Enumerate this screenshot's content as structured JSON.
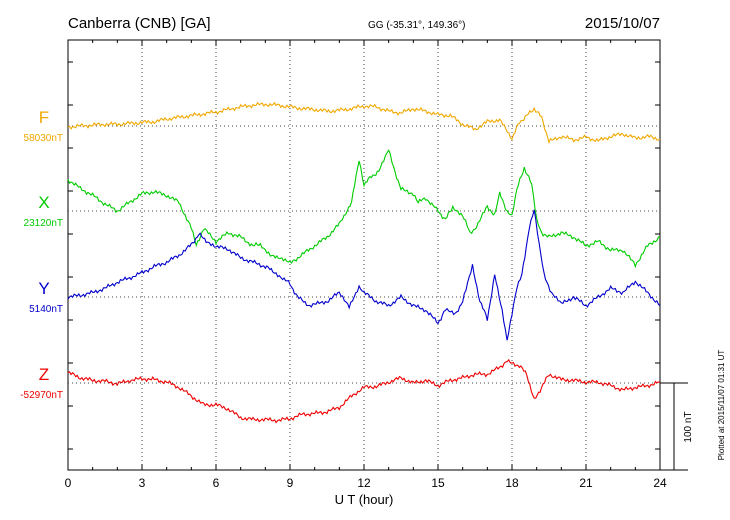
{
  "header": {
    "station": "Canberra (CNB)  [GA]",
    "coords": "GG (-35.31°, 149.36°)",
    "date": "2015/10/07"
  },
  "footer": {
    "plotted": "Plotted at 2015/11/07 01:31  UT"
  },
  "chart_data": {
    "type": "line",
    "title": "Canberra (CNB)  [GA]",
    "xlabel": "U T (hour)",
    "xlim": [
      0,
      24
    ],
    "xticks": [
      "0",
      "3",
      "6",
      "9",
      "12",
      "15",
      "18",
      "21",
      "24"
    ],
    "scale_bar": "100 nT",
    "grid": true,
    "series": [
      {
        "name": "F",
        "baseline": "58030nT",
        "color": "#f0a800",
        "x": [
          0,
          0.5,
          1,
          1.5,
          2,
          2.5,
          3,
          3.5,
          4,
          4.5,
          5,
          5.5,
          6,
          6.5,
          7,
          7.5,
          8,
          8.5,
          9,
          9.5,
          10,
          10.5,
          11,
          11.5,
          12,
          12.5,
          13,
          13.5,
          14,
          14.5,
          15,
          15.5,
          16,
          16.5,
          17,
          17.5,
          18,
          18.3,
          18.6,
          18.9,
          19.2,
          19.5,
          20,
          20.5,
          21,
          21.5,
          22,
          22.5,
          23,
          23.5,
          24
        ],
        "y": [
          -1,
          0,
          1,
          2,
          2,
          3,
          4,
          5,
          8,
          10,
          12,
          14,
          16,
          19,
          22,
          24,
          25,
          24,
          22,
          20,
          19,
          17,
          18,
          20,
          23,
          22,
          17,
          15,
          20,
          17,
          13,
          12,
          2,
          -4,
          5,
          7,
          -14,
          4,
          12,
          20,
          10,
          -18,
          -12,
          -16,
          -13,
          -17,
          -12,
          -9,
          -14,
          -12,
          -15
        ]
      },
      {
        "name": "X",
        "baseline": "23120nT",
        "color": "#00cc00",
        "x": [
          0,
          0.5,
          1,
          1.5,
          2,
          2.5,
          3,
          3.5,
          4,
          4.5,
          5,
          5.2,
          5.5,
          6,
          6.5,
          7,
          7.5,
          7.8,
          8.2,
          8.6,
          9,
          9.5,
          10,
          10.5,
          11,
          11.5,
          11.8,
          12,
          12.3,
          12.6,
          13,
          13.2,
          13.5,
          14,
          14.2,
          14.5,
          15,
          15.3,
          15.6,
          16,
          16.3,
          16.5,
          17,
          17.3,
          17.5,
          17.8,
          18,
          18.2,
          18.5,
          18.8,
          19,
          19.2,
          19.5,
          20,
          20.5,
          21,
          21.5,
          22,
          22.5,
          23,
          23.5,
          24
        ],
        "y": [
          36,
          26,
          18,
          8,
          0,
          10,
          20,
          22,
          18,
          10,
          -20,
          -40,
          -20,
          -35,
          -25,
          -30,
          -40,
          -38,
          -50,
          -55,
          -60,
          -50,
          -40,
          -30,
          -15,
          10,
          60,
          30,
          40,
          45,
          70,
          50,
          25,
          20,
          10,
          15,
          0,
          -10,
          5,
          -5,
          -25,
          -20,
          5,
          -5,
          20,
          0,
          -5,
          25,
          50,
          30,
          -10,
          -25,
          -30,
          -25,
          -30,
          -40,
          -35,
          -45,
          -45,
          -62,
          -40,
          -30
        ]
      },
      {
        "name": "Y",
        "baseline": "5140nT",
        "color": "#0000cc",
        "x": [
          0,
          0.5,
          1,
          1.5,
          2,
          2.5,
          3,
          3.5,
          4,
          4.5,
          5,
          5.3,
          5.6,
          6,
          6.5,
          7,
          7.5,
          8,
          8.3,
          8.7,
          9,
          9.3,
          9.8,
          10.5,
          11,
          11.4,
          11.8,
          12,
          12.5,
          13,
          13.5,
          14,
          14.5,
          15,
          15.3,
          15.7,
          16,
          16.4,
          16.7,
          17,
          17.3,
          17.6,
          17.8,
          18,
          18.2,
          18.4,
          18.7,
          18.9,
          19.1,
          19.3,
          19.6,
          20,
          20.5,
          21,
          21.5,
          22,
          22.5,
          23,
          23.5,
          24
        ],
        "y": [
          0,
          2,
          5,
          10,
          17,
          22,
          28,
          35,
          40,
          48,
          60,
          72,
          65,
          58,
          55,
          45,
          40,
          35,
          30,
          22,
          15,
          0,
          -10,
          -5,
          5,
          -10,
          12,
          5,
          -5,
          -10,
          0,
          -10,
          -15,
          -30,
          -15,
          -20,
          -5,
          35,
          -5,
          -25,
          25,
          -15,
          -50,
          -20,
          10,
          25,
          80,
          100,
          60,
          25,
          5,
          -8,
          0,
          -10,
          0,
          10,
          5,
          18,
          5,
          -10
        ]
      },
      {
        "name": "Z",
        "baseline": "-52970nT",
        "color": "#ee0000",
        "x": [
          0,
          0.5,
          1,
          1.5,
          2,
          2.5,
          3,
          3.5,
          4,
          4.5,
          5,
          5.5,
          6,
          6.5,
          7,
          7.5,
          8,
          8.5,
          9,
          9.5,
          10,
          10.5,
          11,
          11.5,
          12,
          12.5,
          13,
          13.5,
          14,
          14.5,
          15,
          15.5,
          16,
          16.5,
          17,
          17.5,
          17.8,
          18,
          18.3,
          18.6,
          18.9,
          19.2,
          19.5,
          20,
          20.5,
          21,
          21.5,
          22,
          22.5,
          23,
          23.5,
          24
        ],
        "y": [
          12,
          6,
          3,
          2,
          -1,
          3,
          5,
          4,
          1,
          -5,
          -15,
          -25,
          -25,
          -30,
          -40,
          -42,
          -42,
          -43,
          -41,
          -36,
          -35,
          -33,
          -28,
          -15,
          -5,
          -4,
          1,
          6,
          0,
          3,
          -3,
          3,
          6,
          10,
          10,
          18,
          25,
          22,
          20,
          10,
          -20,
          -5,
          10,
          4,
          3,
          1,
          1,
          -3,
          -8,
          -5,
          -3,
          1
        ]
      }
    ]
  }
}
